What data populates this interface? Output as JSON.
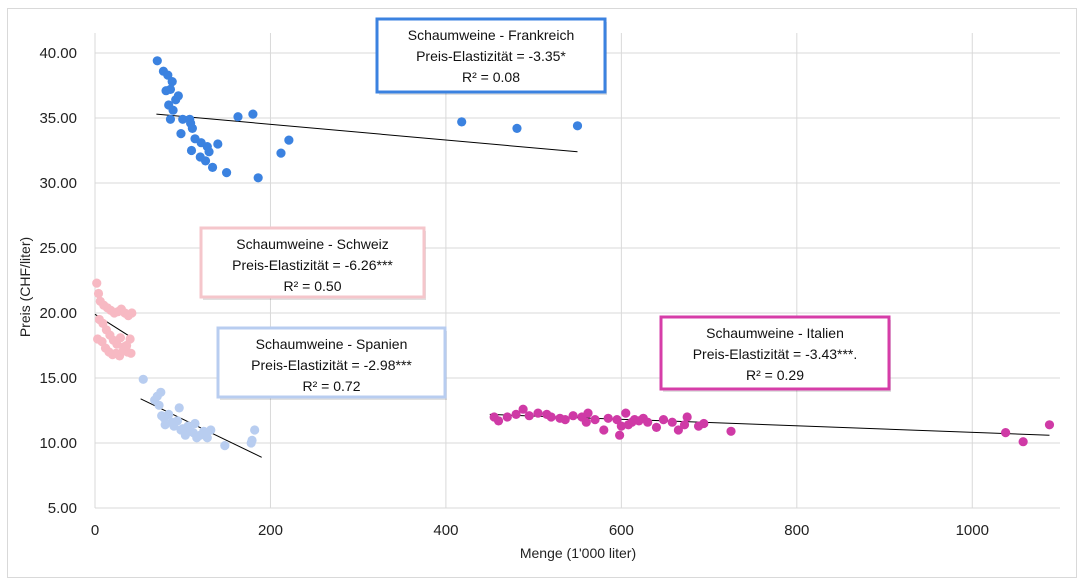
{
  "chart_data": {
    "type": "scatter",
    "xlabel": "Menge (1'000 liter)",
    "ylabel": "Preis (CHF/liter)",
    "xlim": [
      0,
      1100
    ],
    "ylim": [
      5,
      40
    ],
    "xticks": [
      "0",
      "200",
      "400",
      "600",
      "800",
      "1000"
    ],
    "yticks": [
      "5.00",
      "10.00",
      "15.00",
      "20.00",
      "25.00",
      "30.00",
      "35.00",
      "40.00"
    ],
    "grid": true,
    "series": [
      {
        "name": "Schaumweine - Frankreich",
        "color": "#3b82e0",
        "points": [
          [
            71,
            39.4
          ],
          [
            78,
            38.6
          ],
          [
            83,
            38.3
          ],
          [
            86,
            37.2
          ],
          [
            88,
            37.8
          ],
          [
            81,
            37.1
          ],
          [
            92,
            36.4
          ],
          [
            95,
            36.7
          ],
          [
            84,
            36.0
          ],
          [
            89,
            35.6
          ],
          [
            86,
            34.9
          ],
          [
            100,
            34.9
          ],
          [
            98,
            33.8
          ],
          [
            108,
            34.9
          ],
          [
            109,
            34.6
          ],
          [
            111,
            34.2
          ],
          [
            114,
            33.4
          ],
          [
            121,
            33.1
          ],
          [
            128,
            32.8
          ],
          [
            130,
            32.4
          ],
          [
            110,
            32.5
          ],
          [
            120,
            32.0
          ],
          [
            126,
            31.7
          ],
          [
            134,
            31.2
          ],
          [
            140,
            33.0
          ],
          [
            150,
            30.8
          ],
          [
            163,
            35.1
          ],
          [
            180,
            35.3
          ],
          [
            186,
            30.4
          ],
          [
            212,
            32.3
          ],
          [
            221,
            33.3
          ],
          [
            418,
            34.7
          ],
          [
            481,
            34.2
          ],
          [
            550,
            34.4
          ]
        ],
        "trend": [
          [
            70,
            35.3
          ],
          [
            550,
            32.4
          ]
        ],
        "annotation": [
          "Schaumweine - Frankreich",
          "Preis-Elastizität = -3.35*",
          "R² = 0.08"
        ],
        "box_color": "#3b82e0"
      },
      {
        "name": "Schaumweine - Schweiz",
        "color": "#f7b9c3",
        "points": [
          [
            2,
            22.3
          ],
          [
            4,
            21.5
          ],
          [
            6,
            20.9
          ],
          [
            10,
            20.6
          ],
          [
            14,
            20.4
          ],
          [
            18,
            20.2
          ],
          [
            22,
            20.0
          ],
          [
            26,
            20.1
          ],
          [
            30,
            20.3
          ],
          [
            34,
            20.0
          ],
          [
            38,
            19.8
          ],
          [
            42,
            20.0
          ],
          [
            5,
            19.5
          ],
          [
            9,
            19.2
          ],
          [
            13,
            18.7
          ],
          [
            17,
            18.3
          ],
          [
            21,
            17.9
          ],
          [
            25,
            17.6
          ],
          [
            29,
            18.1
          ],
          [
            33,
            17.4
          ],
          [
            37,
            17.0
          ],
          [
            41,
            16.9
          ],
          [
            3,
            18.0
          ],
          [
            8,
            17.8
          ],
          [
            12,
            17.3
          ],
          [
            16,
            17.0
          ],
          [
            20,
            16.8
          ],
          [
            24,
            16.9
          ],
          [
            28,
            16.7
          ],
          [
            32,
            17.1
          ],
          [
            36,
            17.5
          ],
          [
            40,
            18.0
          ]
        ],
        "trend": [
          [
            0,
            19.9
          ],
          [
            42,
            18.1
          ]
        ],
        "annotation": [
          "Schaumweine - Schweiz",
          "Preis-Elastizität = -6.26***",
          "R² = 0.50"
        ],
        "box_color": "#f5c6cb"
      },
      {
        "name": "Schaumweine - Spanien",
        "color": "#b8cdf0",
        "points": [
          [
            55,
            14.9
          ],
          [
            68,
            13.3
          ],
          [
            71,
            13.6
          ],
          [
            73,
            12.9
          ],
          [
            75,
            13.9
          ],
          [
            76,
            12.1
          ],
          [
            79,
            11.9
          ],
          [
            80,
            11.4
          ],
          [
            84,
            12.2
          ],
          [
            88,
            11.6
          ],
          [
            90,
            11.3
          ],
          [
            94,
            11.7
          ],
          [
            96,
            12.7
          ],
          [
            98,
            11.0
          ],
          [
            100,
            11.1
          ],
          [
            103,
            10.6
          ],
          [
            106,
            11.3
          ],
          [
            109,
            10.9
          ],
          [
            112,
            10.8
          ],
          [
            114,
            11.5
          ],
          [
            116,
            10.4
          ],
          [
            120,
            10.6
          ],
          [
            124,
            10.9
          ],
          [
            128,
            10.4
          ],
          [
            132,
            11.0
          ],
          [
            148,
            9.8
          ],
          [
            178,
            10.0
          ],
          [
            179,
            10.2
          ],
          [
            182,
            11.0
          ]
        ],
        "trend": [
          [
            52,
            13.4
          ],
          [
            190,
            8.9
          ]
        ],
        "annotation": [
          "Schaumweine - Spanien",
          "Preis-Elastizität = -2.98***",
          "R² = 0.72"
        ],
        "box_color": "#b8cdf0"
      },
      {
        "name": "Schaumweine - Italien",
        "color": "#cf3aa6",
        "points": [
          [
            455,
            12.0
          ],
          [
            460,
            11.7
          ],
          [
            470,
            12.0
          ],
          [
            480,
            12.2
          ],
          [
            488,
            12.6
          ],
          [
            495,
            12.1
          ],
          [
            505,
            12.3
          ],
          [
            515,
            12.2
          ],
          [
            520,
            12.0
          ],
          [
            530,
            11.9
          ],
          [
            536,
            11.8
          ],
          [
            545,
            12.1
          ],
          [
            555,
            12.0
          ],
          [
            560,
            11.6
          ],
          [
            562,
            12.3
          ],
          [
            570,
            11.8
          ],
          [
            580,
            11.0
          ],
          [
            585,
            11.9
          ],
          [
            595,
            11.8
          ],
          [
            598,
            10.6
          ],
          [
            600,
            11.3
          ],
          [
            605,
            12.3
          ],
          [
            608,
            11.4
          ],
          [
            612,
            11.6
          ],
          [
            615,
            11.8
          ],
          [
            620,
            11.7
          ],
          [
            625,
            11.9
          ],
          [
            630,
            11.6
          ],
          [
            640,
            11.2
          ],
          [
            648,
            11.8
          ],
          [
            658,
            11.6
          ],
          [
            665,
            11.0
          ],
          [
            672,
            11.4
          ],
          [
            675,
            12.0
          ],
          [
            688,
            11.3
          ],
          [
            694,
            11.5
          ],
          [
            725,
            10.9
          ],
          [
            1038,
            10.8
          ],
          [
            1058,
            10.1
          ],
          [
            1088,
            11.4
          ]
        ],
        "trend": [
          [
            450,
            12.2
          ],
          [
            1088,
            10.6
          ]
        ],
        "annotation": [
          "Schaumweine - Italien",
          "Preis-Elastizität = -3.43***.",
          "R² = 0.29"
        ],
        "box_color": "#d63da8"
      }
    ]
  }
}
